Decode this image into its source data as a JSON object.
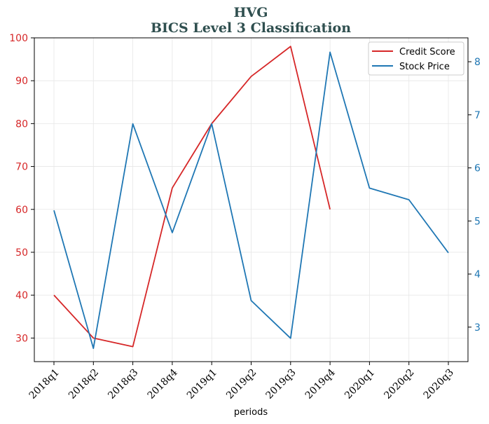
{
  "chart_data": {
    "type": "line",
    "title": "HVG",
    "subtitle": "BICS Level 3 Classification",
    "xlabel": "periods",
    "categories": [
      "2018q1",
      "2018q2",
      "2018q3",
      "2018q4",
      "2019q1",
      "2019q2",
      "2019q3",
      "2019q4",
      "2020q1",
      "2020q2",
      "2020q3"
    ],
    "y_left": {
      "ylim": [
        24.5,
        100
      ],
      "ticks": [
        30,
        40,
        50,
        60,
        70,
        80,
        90,
        100
      ],
      "color": "#d62728"
    },
    "y_right": {
      "ylim": [
        2.35,
        8.45
      ],
      "ticks": [
        3,
        4,
        5,
        6,
        7,
        8
      ],
      "tick_labels": [
        "3",
        "4",
        "5",
        "6",
        "7",
        "8"
      ],
      "color": "#1f77b4"
    },
    "series": [
      {
        "name": "Credit Score",
        "axis": "left",
        "color": "#d62728",
        "values": [
          40,
          30,
          28,
          65,
          80,
          91,
          98,
          60,
          null,
          null,
          null
        ]
      },
      {
        "name": "Stock Price",
        "axis": "right",
        "color": "#1f77b4",
        "values": [
          5.2,
          2.6,
          6.83,
          4.78,
          6.83,
          3.5,
          2.79,
          8.18,
          5.62,
          5.4,
          4.4
        ]
      }
    ],
    "grid": true,
    "legend": "top-right"
  }
}
